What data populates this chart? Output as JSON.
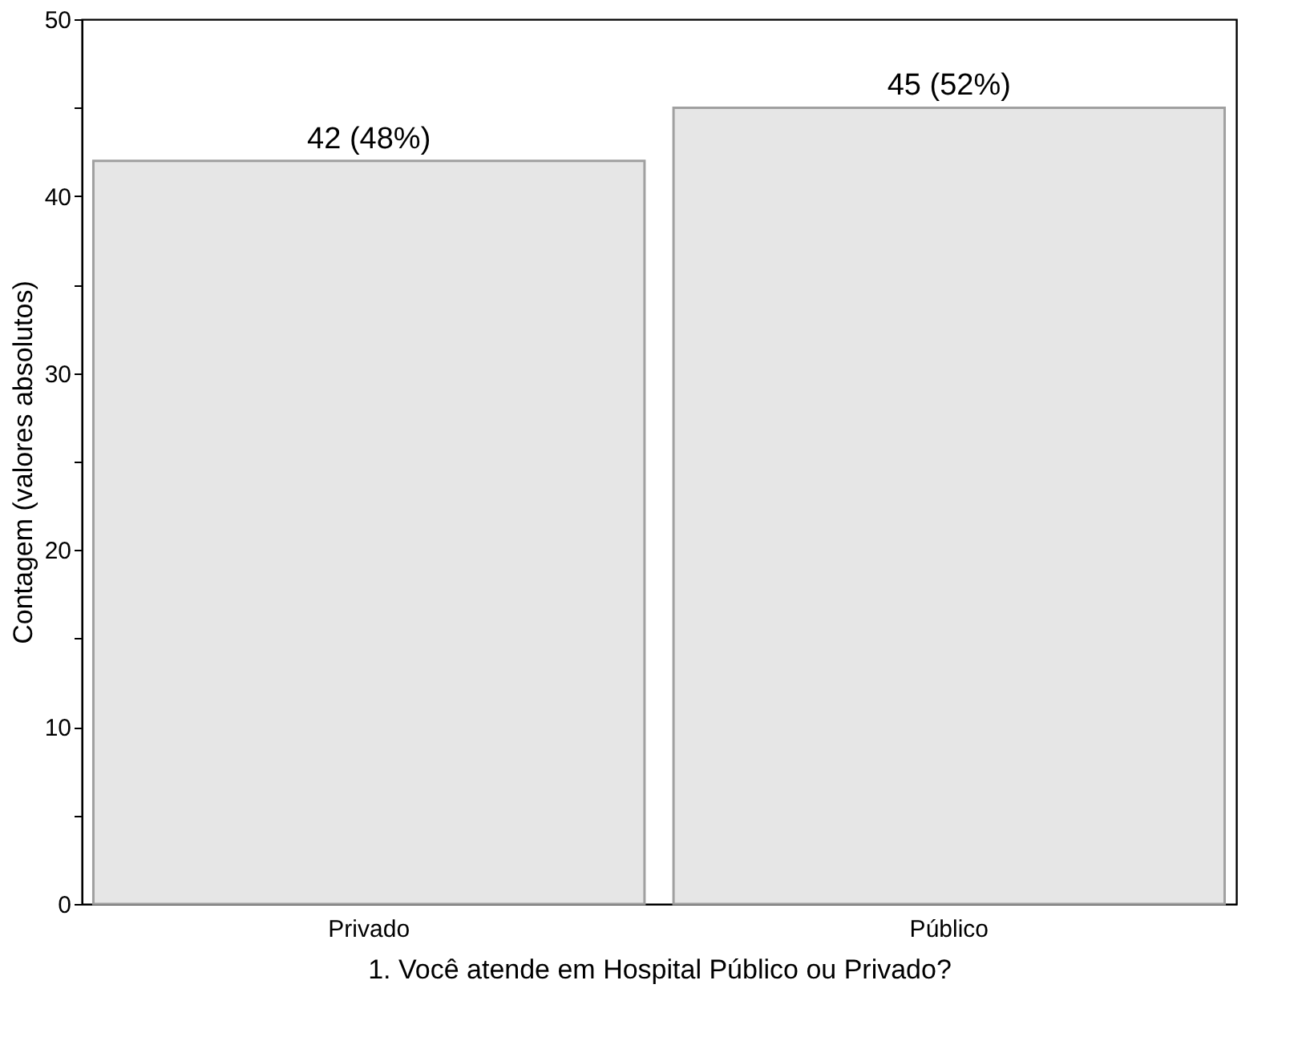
{
  "chart_data": {
    "type": "bar",
    "categories": [
      "Privado",
      "Público"
    ],
    "values": [
      42,
      45
    ],
    "value_labels": [
      "42 (48%)",
      "45 (52%)"
    ],
    "color": "#e6e6e6",
    "xlabel": "1. Você atende em Hospital Público ou Privado?",
    "ylabel": "Contagem (valores absolutos)",
    "ylim": [
      0,
      50
    ],
    "yticks": [
      0,
      {
        "value": 5,
        "label": null
      },
      10,
      {
        "value": 15,
        "label": null
      },
      20,
      {
        "value": 25,
        "label": null
      },
      30,
      {
        "value": 35,
        "label": null
      },
      40,
      {
        "value": 45,
        "label": null
      },
      50
    ],
    "grid": false
  }
}
